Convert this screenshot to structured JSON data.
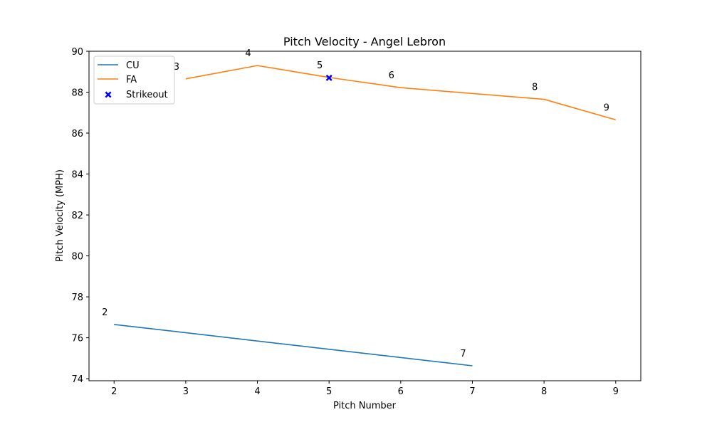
{
  "chart_data": {
    "type": "line",
    "title": "Pitch Velocity - Angel Lebron",
    "xlabel": "Pitch Number",
    "ylabel": "Pitch Velocity (MPH)",
    "xlim": [
      1.65,
      9.35
    ],
    "ylim": [
      73.9,
      90.0
    ],
    "xticks": [
      2,
      3,
      4,
      5,
      6,
      7,
      8,
      9
    ],
    "yticks": [
      74,
      76,
      78,
      80,
      82,
      84,
      86,
      88,
      90
    ],
    "grid": false,
    "legend_position": "top-left",
    "series": [
      {
        "name": "CU",
        "color": "#1f77b4",
        "x": [
          2,
          7
        ],
        "y": [
          76.65,
          74.63
        ]
      },
      {
        "name": "FA",
        "color": "#ff7f0e",
        "x": [
          3,
          4,
          5,
          6,
          8,
          9
        ],
        "y": [
          88.65,
          89.3,
          88.72,
          88.22,
          87.65,
          86.65
        ]
      }
    ],
    "markers": [
      {
        "name": "Strikeout",
        "color": "#0000ff",
        "symbol": "x-filled",
        "x": 5,
        "y": 88.7
      }
    ],
    "point_labels": [
      {
        "text": "2",
        "x": 2,
        "y": 76.65
      },
      {
        "text": "3",
        "x": 3,
        "y": 88.65
      },
      {
        "text": "4",
        "x": 4,
        "y": 89.3
      },
      {
        "text": "5",
        "x": 5,
        "y": 88.72
      },
      {
        "text": "6",
        "x": 6,
        "y": 88.22
      },
      {
        "text": "7",
        "x": 7,
        "y": 74.63
      },
      {
        "text": "8",
        "x": 8,
        "y": 87.65
      },
      {
        "text": "9",
        "x": 9,
        "y": 86.65
      }
    ]
  }
}
